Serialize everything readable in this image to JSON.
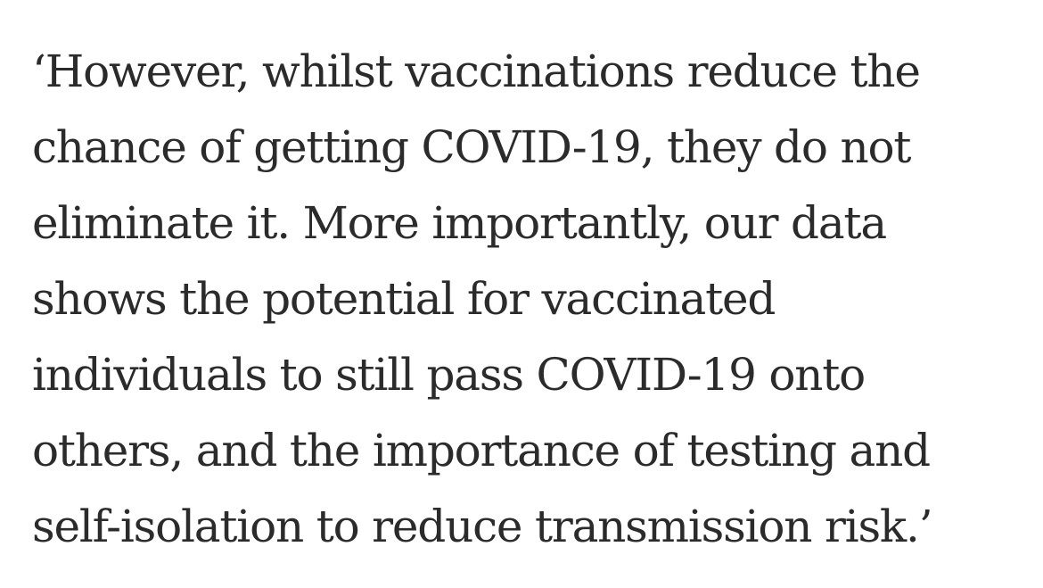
{
  "quote": {
    "lines": [
      "‘However, whilst vaccinations reduce the",
      "chance of getting COVID-19, they do not",
      "eliminate it. More importantly, our data",
      "shows the potential for vaccinated",
      "individuals to still pass COVID-19 onto",
      "others, and the importance of testing and",
      "self-isolation to reduce transmission risk.’"
    ]
  }
}
